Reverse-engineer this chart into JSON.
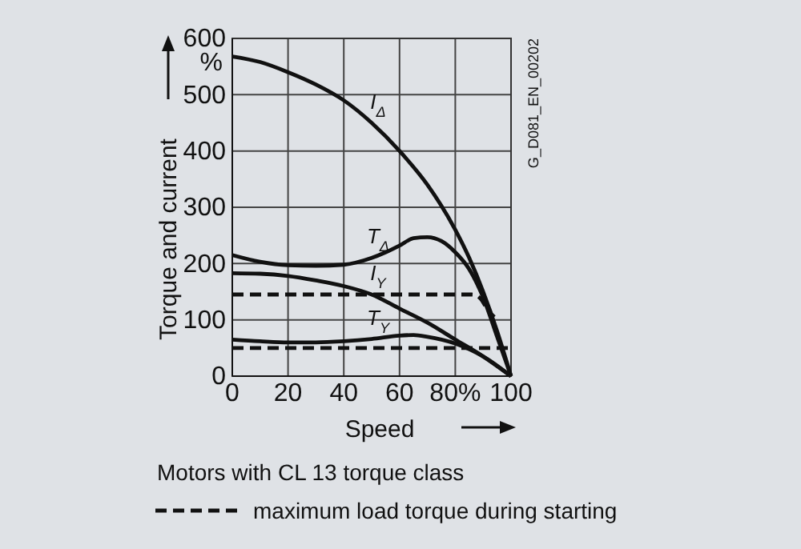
{
  "chart_data": {
    "type": "line",
    "ylabel": "Torque and current",
    "xlabel": "Speed",
    "xlim": [
      0,
      100
    ],
    "ylim": [
      0,
      600
    ],
    "xticks": [
      0,
      20,
      40,
      60,
      {
        "value": 80,
        "label": "80%"
      },
      100
    ],
    "yticks": [
      0,
      100,
      200,
      300,
      400,
      500,
      600
    ],
    "grid": true,
    "legend": "bottom",
    "line_style": "solid",
    "marker": "none",
    "annotations": [
      "%",
      "G_D081_EN_00202",
      "Motors with CL 13 torque class"
    ],
    "series": [
      {
        "name": "I$_{Δ}$",
        "color": "#111111",
        "x": [
          0,
          10,
          20,
          30,
          40,
          50,
          60,
          70,
          80,
          85,
          90,
          95,
          100
        ],
        "values": [
          568,
          558,
          540,
          518,
          490,
          450,
          400,
          340,
          260,
          210,
          150,
          80,
          0
        ]
      },
      {
        "name": "T$_{Δ}$",
        "color": "#111111",
        "x": [
          0,
          10,
          20,
          30,
          40,
          50,
          55,
          60,
          65,
          70,
          75,
          80,
          85,
          90,
          95,
          100
        ],
        "values": [
          215,
          203,
          197,
          196,
          198,
          210,
          220,
          232,
          245,
          247,
          240,
          220,
          190,
          140,
          70,
          0
        ]
      },
      {
        "name": "I$_{Y}$",
        "color": "#111111",
        "x": [
          0,
          10,
          20,
          30,
          40,
          50,
          60,
          70,
          80,
          90,
          100
        ],
        "values": [
          183,
          182,
          178,
          170,
          160,
          145,
          120,
          95,
          65,
          35,
          0
        ]
      },
      {
        "name": "T$_{Y}$",
        "color": "#111111",
        "x": [
          0,
          10,
          20,
          30,
          40,
          50,
          60,
          65,
          70,
          80,
          90,
          100
        ],
        "values": [
          65,
          62,
          60,
          60,
          62,
          66,
          72,
          73,
          70,
          58,
          35,
          0
        ]
      },
      {
        "name": "maximum load torque during starting",
        "color": "#111111",
        "line_style": "dashed",
        "x": [
          0,
          86,
          89,
          92,
          94
        ],
        "values": [
          145,
          145,
          138,
          115,
          105
        ]
      },
      {
        "color": "#111111",
        "line_style": "dashed",
        "x": [
          0,
          100
        ],
        "values": [
          50,
          50
        ]
      }
    ]
  }
}
